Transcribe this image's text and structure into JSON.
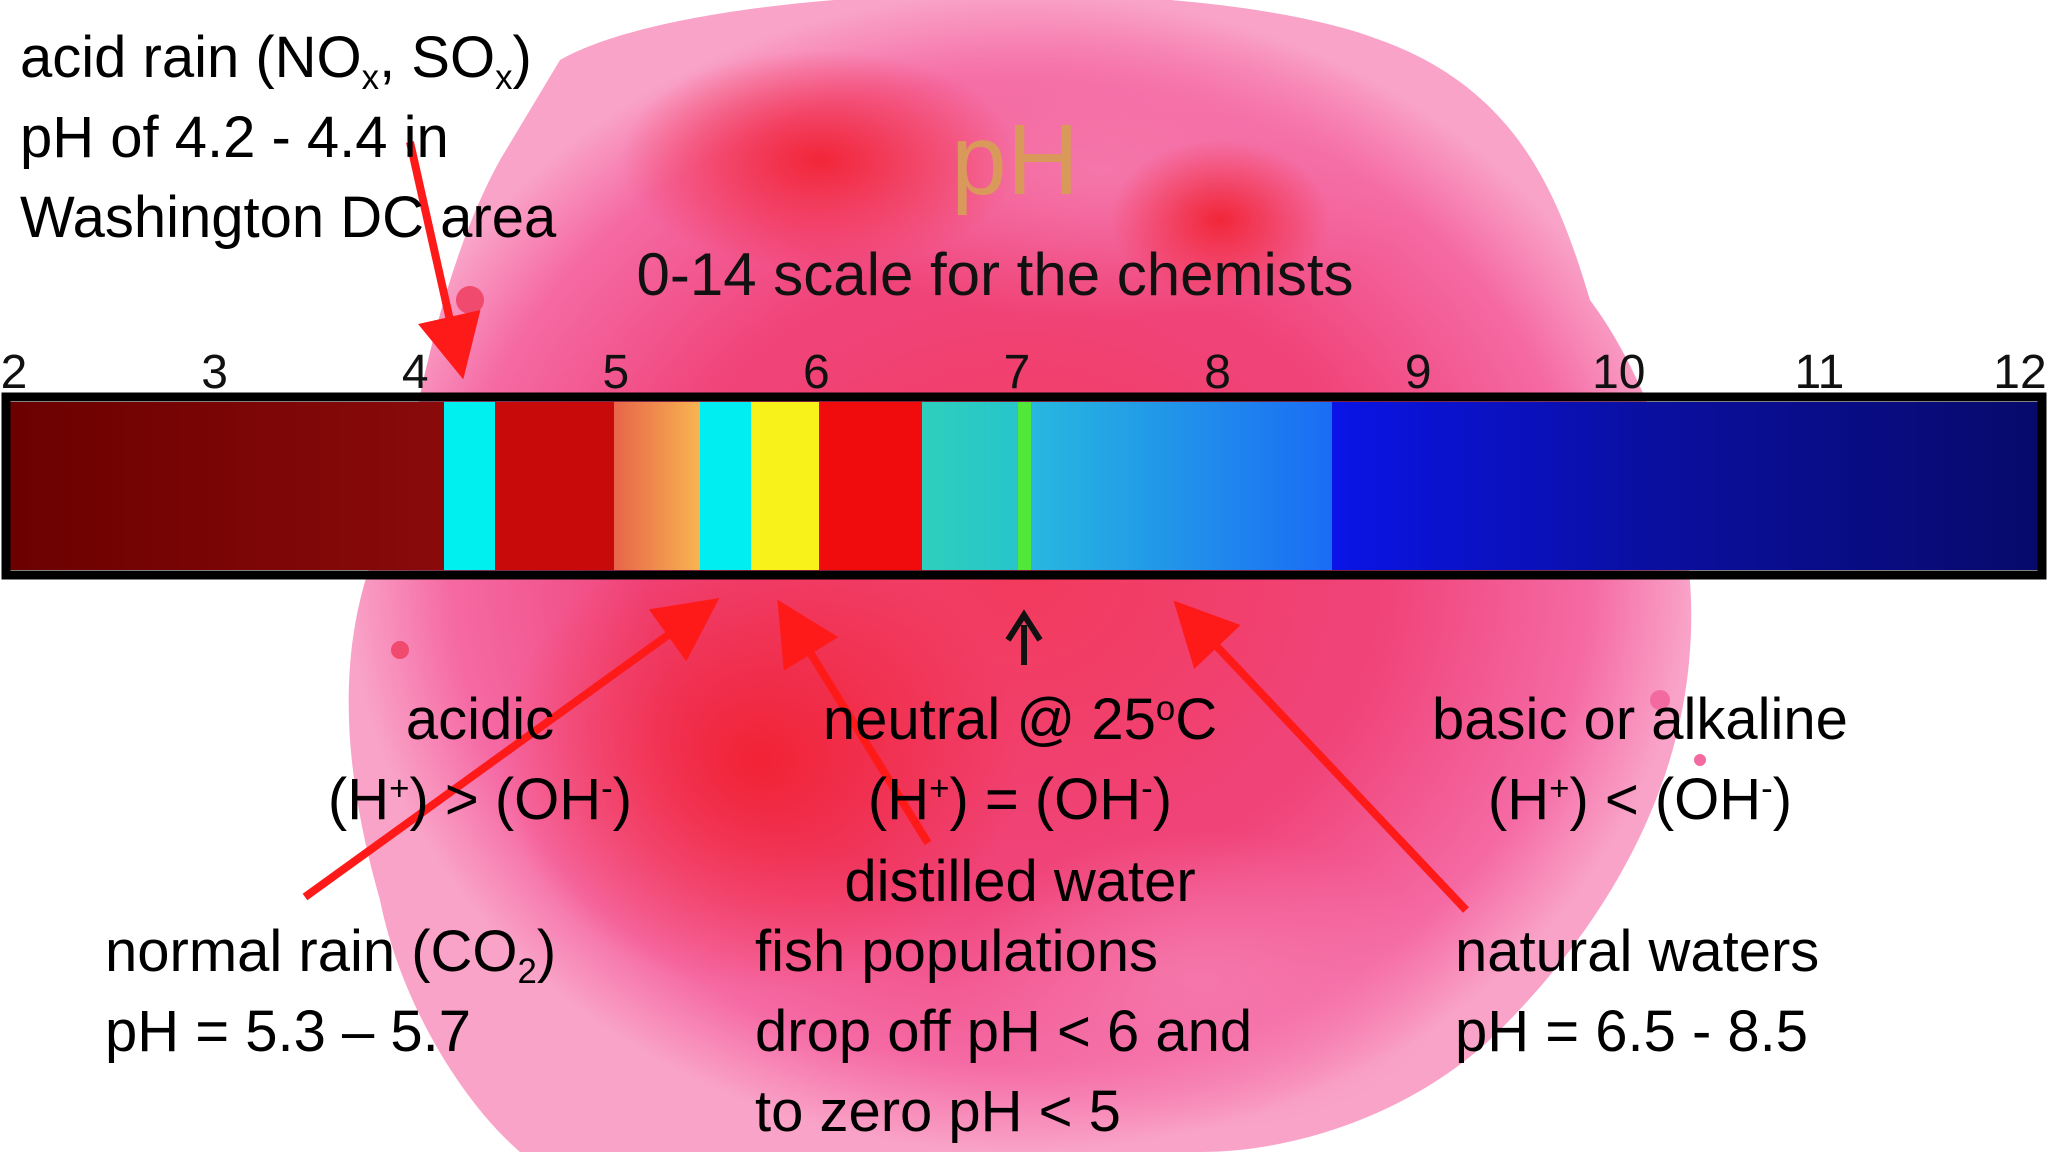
{
  "title": "pH",
  "subtitle": "0-14 scale for the chemists",
  "scale": {
    "min": 2,
    "max": 12,
    "ticks": [
      "2",
      "3",
      "4",
      "5",
      "6",
      "7",
      "8",
      "9",
      "10",
      "11",
      "12"
    ],
    "neutral_marker": 7
  },
  "acid_rain": {
    "line1_prefix": "acid rain (NO",
    "sub_x1": "x",
    "line1_mid": ", SO",
    "sub_x2": "x",
    "line1_suffix": ")",
    "line2": "pH of 4.2 - 4.4 in",
    "line3": "Washington DC area"
  },
  "acidic": {
    "label": "acidic",
    "f_a": "(H",
    "sup_a": "+",
    "f_b": ") > (OH",
    "sup_b": "-",
    "f_c": ")"
  },
  "neutral": {
    "label_prefix": "neutral @ 25",
    "sup_deg": "o",
    "label_suffix": "C",
    "f_a": "(H",
    "sup_a": "+",
    "f_b": ") = (OH",
    "sup_b": "-",
    "f_c": ")",
    "distilled": "distilled water"
  },
  "basic": {
    "label": "basic or alkaline",
    "f_a": "(H",
    "sup_a": "+",
    "f_b": ") < (OH",
    "sup_b": "-",
    "f_c": ")"
  },
  "normal_rain": {
    "line1_prefix": "normal rain (CO",
    "sub_2": "2",
    "line1_suffix": ")",
    "line2": "pH = 5.3 – 5.7"
  },
  "fish": {
    "line1": "fish populations",
    "line2": "drop off pH < 6 and",
    "line3": "to zero pH < 5"
  },
  "natural_waters": {
    "line1": "natural waters",
    "line2": "pH = 6.5 - 8.5"
  },
  "colors": {
    "splash": "#f0447a",
    "arrow": "#ff1a1a",
    "title": "#d9995a"
  }
}
